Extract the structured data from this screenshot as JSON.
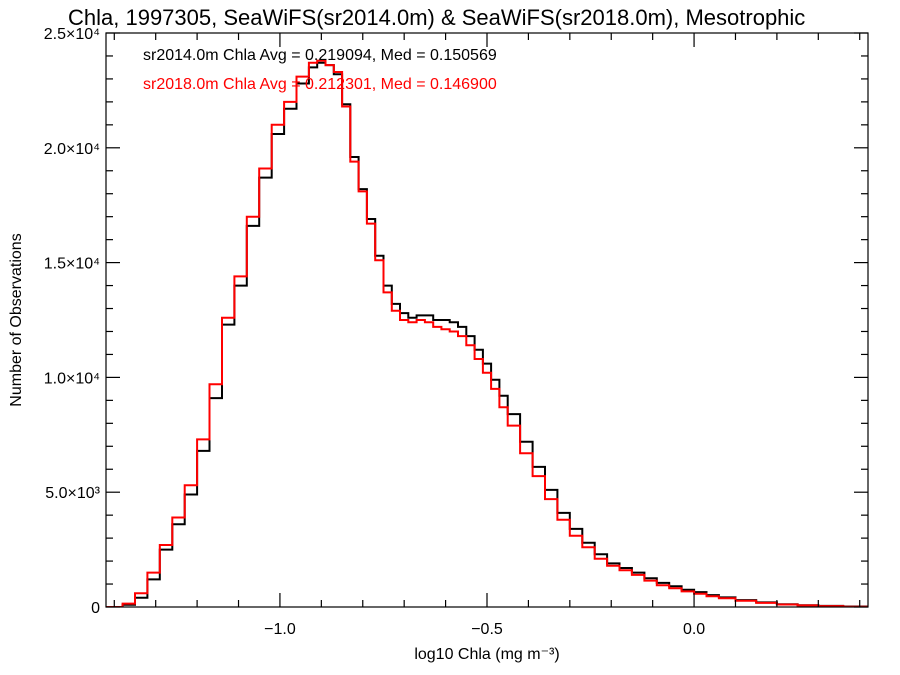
{
  "chart_data": {
    "type": "line",
    "title": "Chla, 1997305, SeaWiFS(sr2014.0m) & SeaWiFS(sr2018.0m), Mesotrophic",
    "xlabel": "log10 Chla (mg m⁻³)",
    "ylabel": "Number of Observations",
    "xlim": [
      -1.42,
      0.42
    ],
    "ylim": [
      0,
      25000
    ],
    "x_ticks": [
      -1.0,
      -0.5,
      0.0
    ],
    "x_tick_labels": [
      "−1.0",
      "−0.5",
      "0.0"
    ],
    "y_ticks": [
      0,
      5000,
      10000,
      15000,
      20000,
      25000
    ],
    "y_tick_labels": [
      "0",
      "5.0×10³",
      "1.0×10⁴",
      "1.5×10⁴",
      "2.0×10⁴",
      "2.5×10⁴"
    ],
    "grid": false,
    "step": true,
    "annotations": [
      {
        "text": "sr2014.0m Chla Avg = 0.219094, Med = 0.150569",
        "color": "#000000"
      },
      {
        "text": "sr2018.0m Chla Avg = 0.212301, Med = 0.146900",
        "color": "#ff0000"
      }
    ],
    "series": [
      {
        "color": "#000000",
        "x": [
          -1.42,
          -1.38,
          -1.35,
          -1.32,
          -1.29,
          -1.26,
          -1.23,
          -1.2,
          -1.17,
          -1.14,
          -1.11,
          -1.08,
          -1.05,
          -1.02,
          -0.99,
          -0.96,
          -0.93,
          -0.91,
          -0.89,
          -0.87,
          -0.85,
          -0.83,
          -0.81,
          -0.79,
          -0.77,
          -0.75,
          -0.73,
          -0.71,
          -0.69,
          -0.67,
          -0.65,
          -0.63,
          -0.61,
          -0.59,
          -0.57,
          -0.55,
          -0.53,
          -0.51,
          -0.49,
          -0.47,
          -0.45,
          -0.42,
          -0.39,
          -0.36,
          -0.33,
          -0.3,
          -0.27,
          -0.24,
          -0.21,
          -0.18,
          -0.15,
          -0.12,
          -0.09,
          -0.06,
          -0.03,
          0.0,
          0.03,
          0.06,
          0.1,
          0.15,
          0.2,
          0.25,
          0.3,
          0.36,
          0.42
        ],
        "y": [
          0,
          100,
          400,
          1200,
          2500,
          3600,
          4900,
          6800,
          9100,
          12300,
          14000,
          16600,
          18700,
          20600,
          21700,
          22800,
          23500,
          23700,
          23600,
          23200,
          21900,
          19600,
          18200,
          16900,
          15300,
          14000,
          13200,
          12800,
          12600,
          12700,
          12700,
          12500,
          12500,
          12400,
          12200,
          11800,
          11200,
          10600,
          9900,
          9200,
          8400,
          7200,
          6100,
          5100,
          4100,
          3400,
          2800,
          2300,
          1900,
          1700,
          1500,
          1250,
          1050,
          900,
          750,
          650,
          520,
          420,
          300,
          200,
          120,
          80,
          50,
          20,
          10
        ]
      },
      {
        "color": "#ff0000",
        "x": [
          -1.42,
          -1.38,
          -1.35,
          -1.32,
          -1.29,
          -1.26,
          -1.23,
          -1.2,
          -1.17,
          -1.14,
          -1.11,
          -1.08,
          -1.05,
          -1.02,
          -0.99,
          -0.96,
          -0.93,
          -0.91,
          -0.89,
          -0.87,
          -0.85,
          -0.83,
          -0.81,
          -0.79,
          -0.77,
          -0.75,
          -0.73,
          -0.71,
          -0.69,
          -0.67,
          -0.65,
          -0.63,
          -0.61,
          -0.59,
          -0.57,
          -0.55,
          -0.53,
          -0.51,
          -0.49,
          -0.47,
          -0.45,
          -0.42,
          -0.39,
          -0.36,
          -0.33,
          -0.3,
          -0.27,
          -0.24,
          -0.21,
          -0.18,
          -0.15,
          -0.12,
          -0.09,
          -0.06,
          -0.03,
          0.0,
          0.03,
          0.06,
          0.1,
          0.15,
          0.2,
          0.25,
          0.3,
          0.36,
          0.42
        ],
        "y": [
          0,
          150,
          600,
          1500,
          2700,
          3900,
          5300,
          7300,
          9700,
          12600,
          14400,
          17000,
          19100,
          21000,
          22000,
          23100,
          23700,
          23800,
          23600,
          23300,
          21800,
          19400,
          18100,
          16700,
          15100,
          13700,
          12900,
          12500,
          12400,
          12500,
          12400,
          12200,
          12100,
          12000,
          11800,
          11400,
          10800,
          10200,
          9500,
          8700,
          7900,
          6700,
          5700,
          4700,
          3800,
          3100,
          2600,
          2100,
          1800,
          1600,
          1400,
          1150,
          950,
          820,
          680,
          580,
          470,
          380,
          270,
          180,
          110,
          70,
          40,
          15,
          5
        ]
      }
    ]
  }
}
